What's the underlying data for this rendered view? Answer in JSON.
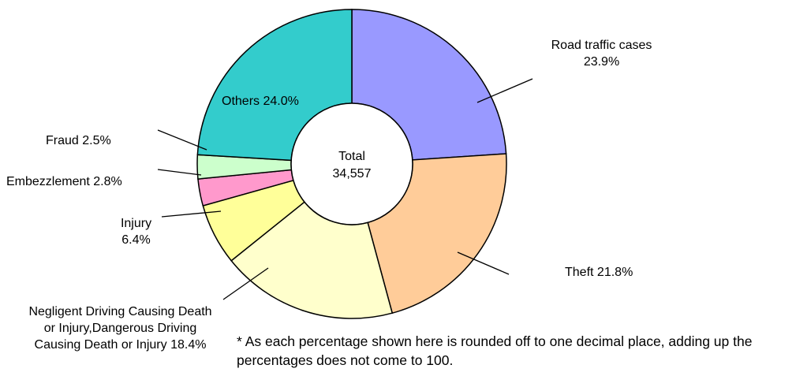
{
  "chart_data": {
    "type": "donut",
    "categories": [
      "Road traffic cases",
      "Theft",
      "Negligent Driving Causing Death or Injury,Dangerous Driving Causing Death or Injury",
      "Injury",
      "Embezzlement",
      "Fraud",
      "Others"
    ],
    "values": [
      23.9,
      21.8,
      18.4,
      6.4,
      2.8,
      2.5,
      24.0
    ],
    "value_labels": [
      "23.9%",
      "21.8%",
      "18.4%",
      "6.4%",
      "2.8%",
      "2.5%",
      "24.0%"
    ],
    "colors": [
      "#9999ff",
      "#ffcc99",
      "#ffffcc",
      "#ffff99",
      "#ff99cc",
      "#ccffcc",
      "#33cccc"
    ],
    "center_title": "Total",
    "total": {
      "value": 34557,
      "label": "34,557"
    },
    "footnote": "* As each percentage shown here is rounded off to one decimal place, adding up the percentages does not come to 100."
  }
}
